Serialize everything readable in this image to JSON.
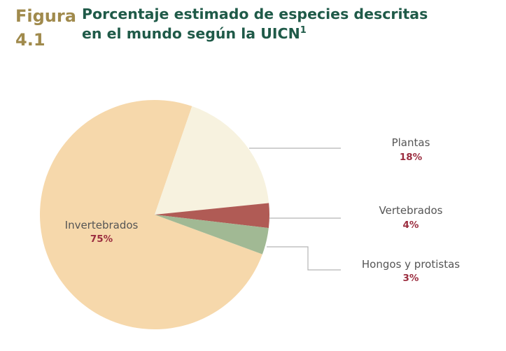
{
  "figure": {
    "label_line1": "Figura",
    "label_line2": "4.1"
  },
  "title": {
    "line1": "Porcentaje estimado de especies descritas",
    "line2": "en el mundo según la UICN",
    "superscript": "1"
  },
  "colors": {
    "Invertebrados": "#f6d8ab",
    "Plantas": "#f7f2df",
    "Vertebrados": "#b05b55",
    "Hongos y protistas": "#a1b994",
    "leader": "#b3b3b3",
    "value_text": "#9b2d3f",
    "label_text": "#555555"
  },
  "chart_data": {
    "type": "pie",
    "title": "Porcentaje estimado de especies descritas en el mundo según la UICN",
    "slices": [
      {
        "name": "Invertebrados",
        "value": 75,
        "label": "75%"
      },
      {
        "name": "Plantas",
        "value": 18,
        "label": "18%"
      },
      {
        "name": "Vertebrados",
        "value": 4,
        "label": "4%"
      },
      {
        "name": "Hongos y protistas",
        "value": 3,
        "label": "3%"
      }
    ]
  }
}
